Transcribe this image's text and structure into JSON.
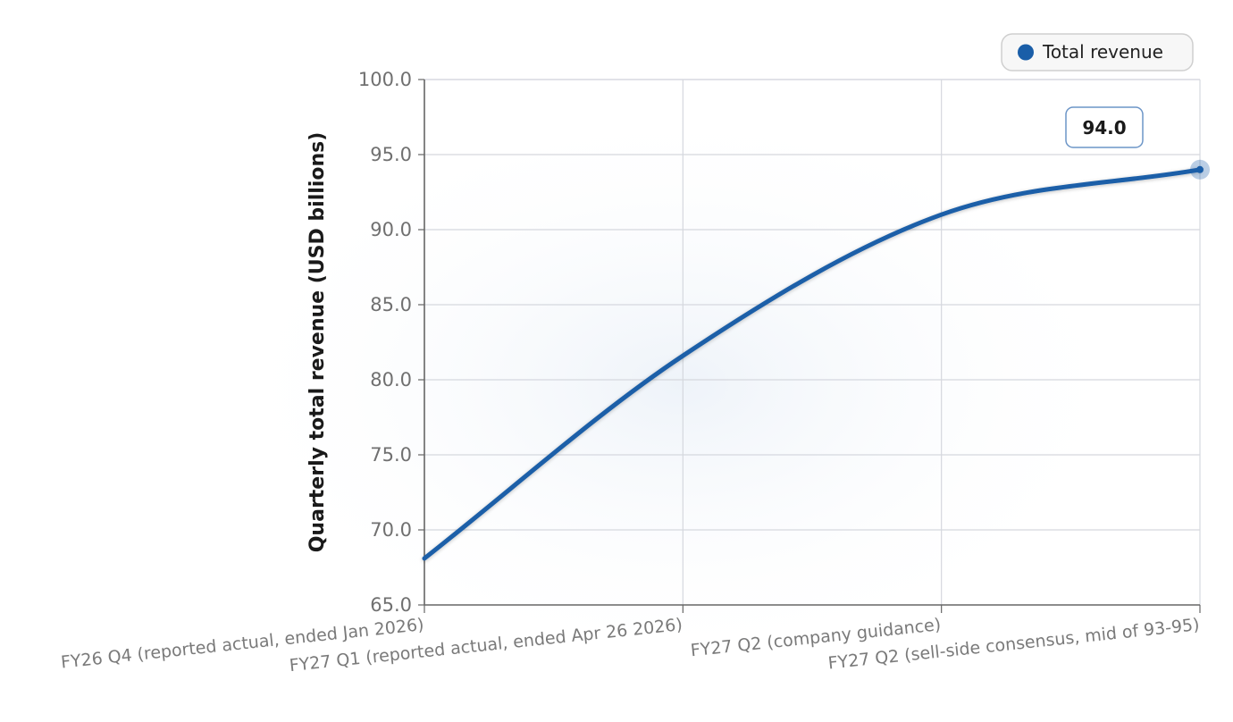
{
  "chart_data": {
    "type": "line",
    "title": "",
    "xlabel": "",
    "ylabel": "Quarterly total revenue (USD billions)",
    "ylim": [
      65,
      100
    ],
    "yticks": [
      "65.0",
      "70.0",
      "75.0",
      "80.0",
      "85.0",
      "90.0",
      "95.0",
      "100.0"
    ],
    "categories": [
      "FY26 Q4 (reported actual, ended Jan 2026)",
      "FY27 Q1 (reported actual, ended Apr 26 2026)",
      "FY27 Q2 (company guidance)",
      "FY27 Q2 (sell-side consensus, mid of 93-95)"
    ],
    "series": [
      {
        "name": "Total revenue",
        "values": [
          68.1,
          81.6,
          91.0,
          94.0
        ]
      }
    ],
    "data_labels": [
      {
        "index": 3,
        "text": "94.0"
      }
    ],
    "grid": true,
    "legend": "top-right",
    "colors": {
      "line": "#1a5ea8",
      "grid": "#d5d8de",
      "axis": "#666666"
    }
  }
}
